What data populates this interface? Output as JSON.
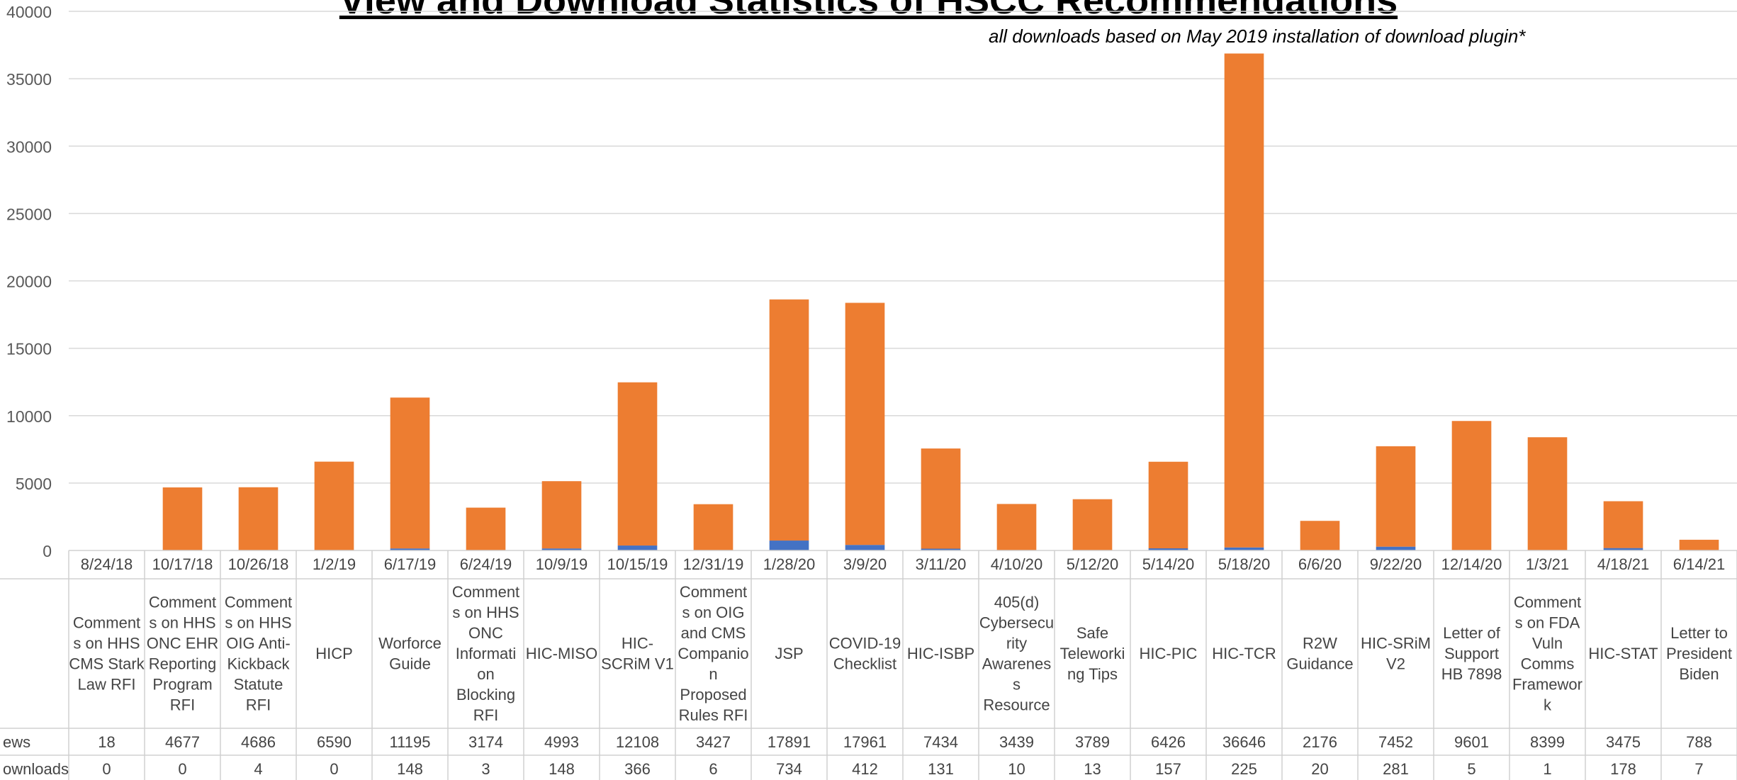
{
  "chart_data": {
    "type": "bar",
    "stacked": true,
    "title": "View and Download Statistics of HSCC Recommendations",
    "subtitle": "all downloads based on May 2019 installation of download plugin*",
    "ylim": [
      0,
      40000
    ],
    "yticks": [
      0,
      5000,
      10000,
      15000,
      20000,
      25000,
      30000,
      35000,
      40000
    ],
    "grid": true,
    "dates": [
      "8/24/18",
      "10/17/18",
      "10/26/18",
      "1/2/19",
      "6/17/19",
      "6/24/19",
      "10/9/19",
      "10/15/19",
      "12/31/19",
      "1/28/20",
      "3/9/20",
      "3/11/20",
      "4/10/20",
      "5/12/20",
      "5/14/20",
      "5/18/20",
      "6/6/20",
      "9/22/20",
      "12/14/20",
      "1/3/21",
      "4/18/21",
      "6/14/21"
    ],
    "categories": [
      [
        "Comment",
        "s on HHS",
        "CMS Stark",
        "Law RFI"
      ],
      [
        "Comment",
        "s on HHS",
        "ONC EHR",
        "Reporting",
        "Program",
        "RFI"
      ],
      [
        "Comment",
        "s on HHS",
        "OIG Anti-",
        "Kickback",
        "Statute",
        "RFI"
      ],
      [
        "HICP"
      ],
      [
        "Worforce",
        "Guide"
      ],
      [
        "Comment",
        "s on HHS",
        "ONC",
        "Informati",
        "on",
        "Blocking",
        "RFI"
      ],
      [
        "HIC-MISO"
      ],
      [
        "HIC-",
        "SCRiM V1"
      ],
      [
        "Comment",
        "s on OIG",
        "and CMS",
        "Companio",
        "n",
        "Proposed",
        "Rules RFI"
      ],
      [
        "JSP"
      ],
      [
        "COVID-19",
        "Checklist"
      ],
      [
        "HIC-ISBP"
      ],
      [
        "405(d)",
        "Cybersecu",
        "rity",
        "Awarenes",
        "s",
        "Resource"
      ],
      [
        "Safe",
        "Teleworki",
        "ng Tips"
      ],
      [
        "HIC-PIC"
      ],
      [
        "HIC-TCR"
      ],
      [
        "R2W",
        "Guidance"
      ],
      [
        "HIC-SRiM",
        "V2"
      ],
      [
        "Letter of",
        "Support",
        "HB 7898"
      ],
      [
        "Comment",
        "s on FDA",
        "Vuln",
        "Comms",
        "Framewor",
        "k"
      ],
      [
        "HIC-STAT"
      ],
      [
        "Letter to",
        "President",
        "Biden"
      ]
    ],
    "series": [
      {
        "name": "Downloads",
        "color": "#4472C4",
        "values": [
          0,
          0,
          4,
          0,
          148,
          3,
          148,
          366,
          6,
          734,
          412,
          131,
          10,
          13,
          157,
          225,
          20,
          281,
          5,
          1,
          178,
          7
        ]
      },
      {
        "name": "Views",
        "color": "#ED7D31",
        "values": [
          18,
          4677,
          4686,
          6590,
          11195,
          3174,
          4993,
          12108,
          3427,
          17891,
          17961,
          7434,
          3439,
          3789,
          6426,
          36646,
          2176,
          7452,
          9601,
          8399,
          3475,
          788
        ]
      }
    ],
    "table_row_labels": [
      "ews",
      "ownloads"
    ]
  }
}
